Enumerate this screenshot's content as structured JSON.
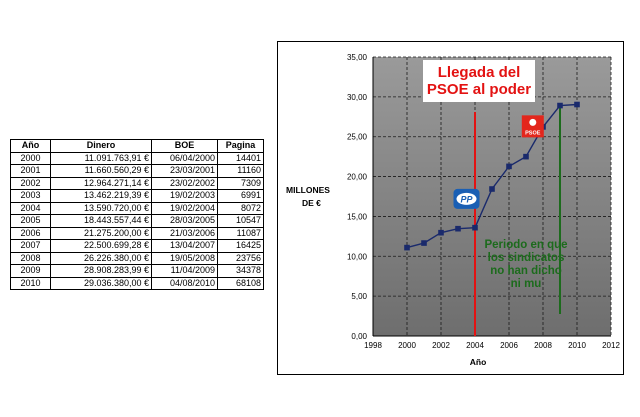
{
  "table": {
    "headers": [
      "Año",
      "Dinero",
      "BOE",
      "Pagina"
    ],
    "rows": [
      [
        "2000",
        "11.091.763,91 €",
        "06/04/2000",
        "14401"
      ],
      [
        "2001",
        "11.660.560,29 €",
        "23/03/2001",
        "11160"
      ],
      [
        "2002",
        "12.964.271,14 €",
        "23/02/2002",
        "7309"
      ],
      [
        "2003",
        "13.462.219,39 €",
        "19/02/2003",
        "6991"
      ],
      [
        "2004",
        "13.590.720,00 €",
        "19/02/2004",
        "8072"
      ],
      [
        "2005",
        "18.443.557,44 €",
        "28/03/2005",
        "10547"
      ],
      [
        "2006",
        "21.275.200,00 €",
        "21/03/2006",
        "11087"
      ],
      [
        "2007",
        "22.500.699,28 €",
        "13/04/2007",
        "16425"
      ],
      [
        "2008",
        "26.226.380,00 €",
        "19/05/2008",
        "23756"
      ],
      [
        "2009",
        "28.908.283,99 €",
        "11/04/2009",
        "34378"
      ],
      [
        "2010",
        "29.036.380,00 €",
        "04/08/2010",
        "68108"
      ]
    ]
  },
  "chart_data": {
    "type": "line",
    "x": [
      2000,
      2001,
      2002,
      2003,
      2004,
      2005,
      2006,
      2007,
      2008,
      2009,
      2010
    ],
    "values": [
      11.09,
      11.66,
      12.96,
      13.46,
      13.59,
      18.44,
      21.28,
      22.5,
      26.23,
      28.91,
      29.04
    ],
    "xlim": [
      1998,
      2012
    ],
    "ylim": [
      0,
      35
    ],
    "x_ticks": [
      "1998",
      "2000",
      "2002",
      "2004",
      "2006",
      "2008",
      "2010",
      "2012"
    ],
    "y_ticks": [
      "0,00",
      "5,00",
      "10,00",
      "15,00",
      "20,00",
      "25,00",
      "30,00",
      "35,00"
    ],
    "xlabel": "Año",
    "ylabel_lines": [
      "MILLONES",
      "DE €"
    ],
    "grid": true,
    "series_color": "#1a2a6c",
    "plot_background": "#8c8c8c",
    "annotations": {
      "arrival": {
        "lines": [
          "Llegada del",
          "PSOE al poder"
        ],
        "color": "#e31212",
        "x": 2004
      },
      "unions": {
        "lines": [
          "Periodo en que",
          "los sindicatos",
          "no han dicho",
          "ni mu"
        ],
        "color": "#1c6b1c",
        "x": 2009
      },
      "pp_logo": {
        "text": "PP",
        "color": "#1a5fb4",
        "year_pos": 2003.5,
        "value_pos": 17.2
      },
      "psoe_logo": {
        "text": "PSOE",
        "color": "#e3261c",
        "year_pos": 2007.4,
        "value_pos": 26.3
      }
    }
  }
}
